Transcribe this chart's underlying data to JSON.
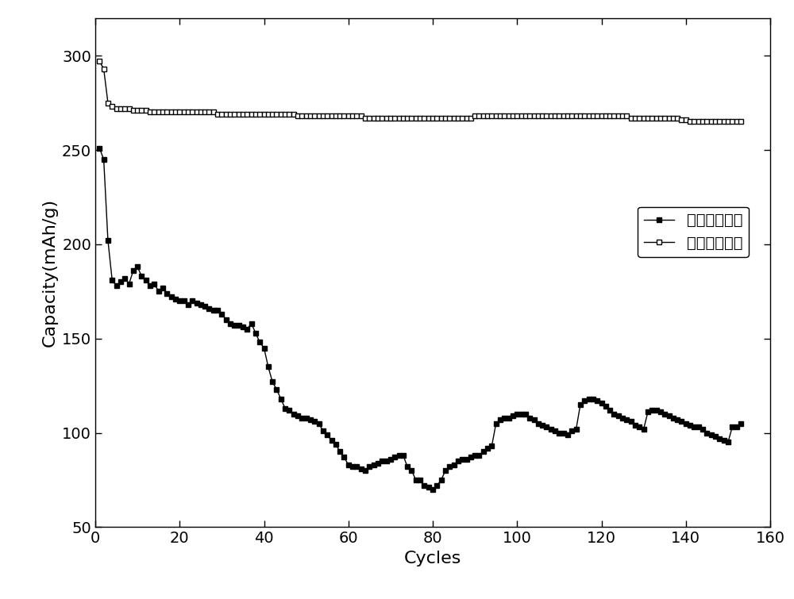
{
  "xlabel": "Cycles",
  "ylabel": "Capacity(mAh/g)",
  "xlim": [
    0,
    160
  ],
  "ylim": [
    50,
    320
  ],
  "xticks": [
    0,
    20,
    40,
    60,
    80,
    100,
    120,
    140,
    160
  ],
  "yticks": [
    50,
    100,
    150,
    200,
    250,
    300
  ],
  "legend1": "未包覆的硬碳",
  "legend2": "包覆后的硬碳",
  "series1_x": [
    1,
    2,
    3,
    4,
    5,
    6,
    7,
    8,
    9,
    10,
    11,
    12,
    13,
    14,
    15,
    16,
    17,
    18,
    19,
    20,
    21,
    22,
    23,
    24,
    25,
    26,
    27,
    28,
    29,
    30,
    31,
    32,
    33,
    34,
    35,
    36,
    37,
    38,
    39,
    40,
    41,
    42,
    43,
    44,
    45,
    46,
    47,
    48,
    49,
    50,
    51,
    52,
    53,
    54,
    55,
    56,
    57,
    58,
    59,
    60,
    61,
    62,
    63,
    64,
    65,
    66,
    67,
    68,
    69,
    70,
    71,
    72,
    73,
    74,
    75,
    76,
    77,
    78,
    79,
    80,
    81,
    82,
    83,
    84,
    85,
    86,
    87,
    88,
    89,
    90,
    91,
    92,
    93,
    94,
    95,
    96,
    97,
    98,
    99,
    100,
    101,
    102,
    103,
    104,
    105,
    106,
    107,
    108,
    109,
    110,
    111,
    112,
    113,
    114,
    115,
    116,
    117,
    118,
    119,
    120,
    121,
    122,
    123,
    124,
    125,
    126,
    127,
    128,
    129,
    130,
    131,
    132,
    133,
    134,
    135,
    136,
    137,
    138,
    139,
    140,
    141,
    142,
    143,
    144,
    145,
    146,
    147,
    148,
    149,
    150,
    151,
    152,
    153
  ],
  "series1_y": [
    251,
    245,
    202,
    181,
    178,
    180,
    182,
    179,
    186,
    188,
    183,
    181,
    178,
    179,
    175,
    177,
    174,
    172,
    171,
    170,
    170,
    168,
    170,
    169,
    168,
    167,
    166,
    165,
    165,
    163,
    160,
    158,
    157,
    157,
    156,
    155,
    158,
    153,
    148,
    145,
    135,
    127,
    123,
    118,
    113,
    112,
    110,
    109,
    108,
    108,
    107,
    106,
    105,
    101,
    99,
    96,
    94,
    90,
    87,
    83,
    82,
    82,
    81,
    80,
    82,
    83,
    84,
    85,
    85,
    86,
    87,
    88,
    88,
    82,
    80,
    75,
    75,
    72,
    71,
    70,
    72,
    75,
    80,
    82,
    83,
    85,
    86,
    86,
    87,
    88,
    88,
    90,
    92,
    93,
    105,
    107,
    108,
    108,
    109,
    110,
    110,
    110,
    108,
    107,
    105,
    104,
    103,
    102,
    101,
    100,
    100,
    99,
    101,
    102,
    115,
    117,
    118,
    118,
    117,
    116,
    114,
    112,
    110,
    109,
    108,
    107,
    106,
    104,
    103,
    102,
    111,
    112,
    112,
    111,
    110,
    109,
    108,
    107,
    106,
    105,
    104,
    103,
    103,
    102,
    100,
    99,
    98,
    97,
    96,
    95,
    103,
    103,
    105
  ],
  "series2_x": [
    1,
    2,
    3,
    4,
    5,
    6,
    7,
    8,
    9,
    10,
    11,
    12,
    13,
    14,
    15,
    16,
    17,
    18,
    19,
    20,
    21,
    22,
    23,
    24,
    25,
    26,
    27,
    28,
    29,
    30,
    31,
    32,
    33,
    34,
    35,
    36,
    37,
    38,
    39,
    40,
    41,
    42,
    43,
    44,
    45,
    46,
    47,
    48,
    49,
    50,
    51,
    52,
    53,
    54,
    55,
    56,
    57,
    58,
    59,
    60,
    61,
    62,
    63,
    64,
    65,
    66,
    67,
    68,
    69,
    70,
    71,
    72,
    73,
    74,
    75,
    76,
    77,
    78,
    79,
    80,
    81,
    82,
    83,
    84,
    85,
    86,
    87,
    88,
    89,
    90,
    91,
    92,
    93,
    94,
    95,
    96,
    97,
    98,
    99,
    100,
    101,
    102,
    103,
    104,
    105,
    106,
    107,
    108,
    109,
    110,
    111,
    112,
    113,
    114,
    115,
    116,
    117,
    118,
    119,
    120,
    121,
    122,
    123,
    124,
    125,
    126,
    127,
    128,
    129,
    130,
    131,
    132,
    133,
    134,
    135,
    136,
    137,
    138,
    139,
    140,
    141,
    142,
    143,
    144,
    145,
    146,
    147,
    148,
    149,
    150,
    151,
    152,
    153
  ],
  "series2_y": [
    297,
    293,
    275,
    273,
    272,
    272,
    272,
    272,
    271,
    271,
    271,
    271,
    270,
    270,
    270,
    270,
    270,
    270,
    270,
    270,
    270,
    270,
    270,
    270,
    270,
    270,
    270,
    270,
    269,
    269,
    269,
    269,
    269,
    269,
    269,
    269,
    269,
    269,
    269,
    269,
    269,
    269,
    269,
    269,
    269,
    269,
    269,
    268,
    268,
    268,
    268,
    268,
    268,
    268,
    268,
    268,
    268,
    268,
    268,
    268,
    268,
    268,
    268,
    267,
    267,
    267,
    267,
    267,
    267,
    267,
    267,
    267,
    267,
    267,
    267,
    267,
    267,
    267,
    267,
    267,
    267,
    267,
    267,
    267,
    267,
    267,
    267,
    267,
    267,
    268,
    268,
    268,
    268,
    268,
    268,
    268,
    268,
    268,
    268,
    268,
    268,
    268,
    268,
    268,
    268,
    268,
    268,
    268,
    268,
    268,
    268,
    268,
    268,
    268,
    268,
    268,
    268,
    268,
    268,
    268,
    268,
    268,
    268,
    268,
    268,
    268,
    267,
    267,
    267,
    267,
    267,
    267,
    267,
    267,
    267,
    267,
    267,
    267,
    266,
    266,
    265,
    265,
    265,
    265,
    265,
    265,
    265,
    265,
    265,
    265,
    265,
    265,
    265
  ],
  "color1": "#000000",
  "color2": "#000000",
  "bg_color": "#ffffff",
  "marker1": "s",
  "marker2": "s",
  "markersize": 4,
  "linewidth": 1.0,
  "legend_fontsize": 14,
  "axis_label_fontsize": 16,
  "tick_fontsize": 14
}
